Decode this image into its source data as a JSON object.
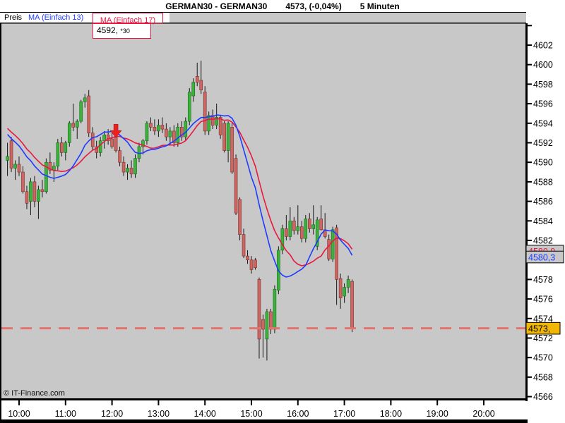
{
  "window": {
    "title_instrument": "GERMAN30 - GERMAN30",
    "title_quote": "4573, (-0,04%)",
    "title_timeframe": "5 Minuten"
  },
  "legend": {
    "pane_label": "Preis",
    "ma13_label": "MA (Einfach 13)",
    "ma17_label": "MA (Einfach 17)",
    "tooltip_value": "4592, ",
    "tooltip_note": "*30"
  },
  "footer": {
    "copyright": "© IT-Finance.com"
  },
  "colors": {
    "chart_bg": "#c8c8c8",
    "frame": "#000000",
    "up_body": "#3cb23c",
    "up_border": "#166b16",
    "down_body": "#cc6661",
    "down_border": "#7e2d2a",
    "wick": "#1a1a1a",
    "ma13": "#1e3cff",
    "ma17": "#e81840",
    "dashed_line": "#e4736e",
    "arrow": "#ec2020",
    "tag_yellow_bg": "#f2b705",
    "tag_gray_bg": "#c8c8c8"
  },
  "chart_data": {
    "type": "candlestick",
    "title": "GERMAN30 5 Minuten",
    "x_axis": {
      "labels": [
        "10:00",
        "11:00",
        "12:00",
        "13:00",
        "14:00",
        "15:00",
        "16:00",
        "17:00",
        "18:00",
        "19:00",
        "20:00"
      ]
    },
    "y_axis": {
      "min": 4566,
      "max": 4604,
      "tick_step": 2,
      "label_min": 4566,
      "label_max": 4602
    },
    "series": [
      {
        "name": "Preis",
        "type": "ohlc",
        "candles": [
          [
            "09:45",
            4590.2,
            4592.0,
            4588.6,
            4590.6
          ],
          [
            "09:50",
            4592.2,
            4592.6,
            4589.0,
            4589.4
          ],
          [
            "09:55",
            4589.4,
            4590.2,
            4588.2,
            4589.8
          ],
          [
            "10:00",
            4589.8,
            4590.6,
            4588.6,
            4589.0
          ],
          [
            "10:05",
            4589.0,
            4589.6,
            4586.8,
            4587.0
          ],
          [
            "10:10",
            4587.0,
            4587.6,
            4585.2,
            4585.8
          ],
          [
            "10:15",
            4586.0,
            4588.4,
            4584.6,
            4588.0
          ],
          [
            "10:20",
            4588.0,
            4588.6,
            4585.4,
            4586.0
          ],
          [
            "10:25",
            4586.0,
            4587.6,
            4584.2,
            4587.2
          ],
          [
            "10:30",
            4587.2,
            4588.2,
            4586.4,
            4587.0
          ],
          [
            "10:35",
            4587.0,
            4590.4,
            4586.8,
            4590.0
          ],
          [
            "10:40",
            4590.0,
            4591.0,
            4588.8,
            4589.2
          ],
          [
            "10:45",
            4589.2,
            4590.0,
            4588.0,
            4589.6
          ],
          [
            "10:50",
            4589.6,
            4592.4,
            4589.2,
            4592.0
          ],
          [
            "10:55",
            4592.0,
            4592.6,
            4590.6,
            4591.0
          ],
          [
            "11:00",
            4591.0,
            4592.2,
            4590.2,
            4592.0
          ],
          [
            "11:05",
            4592.0,
            4594.2,
            4591.6,
            4594.0
          ],
          [
            "11:10",
            4594.0,
            4596.0,
            4593.2,
            4593.6
          ],
          [
            "11:15",
            4593.6,
            4594.4,
            4592.4,
            4594.2
          ],
          [
            "11:20",
            4594.2,
            4596.4,
            4594.0,
            4596.2
          ],
          [
            "11:25",
            4596.2,
            4597.0,
            4595.6,
            4596.6
          ],
          [
            "11:30",
            4596.8,
            4597.4,
            4592.6,
            4593.0
          ],
          [
            "11:35",
            4593.0,
            4593.6,
            4591.2,
            4591.6
          ],
          [
            "11:40",
            4591.6,
            4592.2,
            4590.4,
            4591.0
          ],
          [
            "11:45",
            4591.0,
            4592.6,
            4590.6,
            4592.2
          ],
          [
            "11:50",
            4592.2,
            4593.2,
            4591.4,
            4592.8
          ],
          [
            "11:55",
            4592.8,
            4593.4,
            4591.8,
            4592.2
          ],
          [
            "12:00",
            4592.4,
            4593.0,
            4591.4,
            4591.6
          ],
          [
            "12:05",
            4592.6,
            4593.2,
            4591.0,
            4591.2
          ],
          [
            "12:10",
            4591.2,
            4591.6,
            4589.6,
            4590.0
          ],
          [
            "12:15",
            4590.0,
            4590.6,
            4588.6,
            4589.0
          ],
          [
            "12:20",
            4589.0,
            4589.8,
            4588.2,
            4589.4
          ],
          [
            "12:25",
            4589.4,
            4590.2,
            4588.4,
            4588.8
          ],
          [
            "12:30",
            4588.8,
            4590.8,
            4588.4,
            4590.4
          ],
          [
            "12:35",
            4590.4,
            4592.0,
            4590.0,
            4591.6
          ],
          [
            "12:40",
            4591.6,
            4592.4,
            4590.8,
            4592.2
          ],
          [
            "12:45",
            4592.2,
            4594.2,
            4591.8,
            4594.0
          ],
          [
            "12:50",
            4594.0,
            4594.6,
            4593.2,
            4593.6
          ],
          [
            "12:55",
            4593.6,
            4594.4,
            4592.8,
            4593.2
          ],
          [
            "13:00",
            4593.2,
            4594.4,
            4592.6,
            4593.8
          ],
          [
            "13:05",
            4593.8,
            4594.6,
            4593.0,
            4593.4
          ],
          [
            "13:10",
            4593.4,
            4594.0,
            4592.2,
            4592.6
          ],
          [
            "13:15",
            4592.6,
            4593.6,
            4591.8,
            4593.2
          ],
          [
            "13:20",
            4593.2,
            4593.8,
            4591.6,
            4592.0
          ],
          [
            "13:25",
            4592.0,
            4594.0,
            4591.6,
            4593.6
          ],
          [
            "13:30",
            4593.6,
            4594.2,
            4592.2,
            4592.6
          ],
          [
            "13:35",
            4592.6,
            4594.6,
            4592.2,
            4594.2
          ],
          [
            "13:40",
            4594.2,
            4597.6,
            4593.8,
            4597.2
          ],
          [
            "13:45",
            4596.8,
            4598.6,
            4596.2,
            4598.2
          ],
          [
            "13:50",
            4598.8,
            4600.2,
            4597.8,
            4598.2
          ],
          [
            "13:55",
            4598.4,
            4600.4,
            4597.0,
            4597.4
          ],
          [
            "14:00",
            4597.2,
            4597.8,
            4592.8,
            4593.2
          ],
          [
            "14:05",
            4593.2,
            4595.2,
            4592.8,
            4594.8
          ],
          [
            "14:10",
            4594.8,
            4595.4,
            4593.4,
            4593.8
          ],
          [
            "14:15",
            4593.8,
            4596.0,
            4593.4,
            4594.6
          ],
          [
            "14:20",
            4594.6,
            4594.8,
            4592.4,
            4592.8
          ],
          [
            "14:25",
            4594.0,
            4594.2,
            4591.0,
            4591.2
          ],
          [
            "14:30",
            4591.2,
            4594.2,
            4590.0,
            4594.0
          ],
          [
            "14:35",
            4593.6,
            4594.0,
            4588.8,
            4589.0
          ],
          [
            "14:40",
            4590.4,
            4590.8,
            4584.6,
            4584.8
          ],
          [
            "14:45",
            4586.2,
            4586.4,
            4582.0,
            4582.6
          ],
          [
            "14:50",
            4582.6,
            4583.2,
            4580.2,
            4580.4
          ],
          [
            "14:55",
            4580.4,
            4581.0,
            4579.6,
            4580.0
          ],
          [
            "15:00",
            4580.0,
            4580.4,
            4578.6,
            4579.0
          ],
          [
            "15:05",
            4580.0,
            4580.2,
            4579.0,
            4579.2
          ],
          [
            "15:10",
            4578.0,
            4578.2,
            4569.9,
            4571.9
          ],
          [
            "15:15",
            4573.9,
            4574.4,
            4570.0,
            4572.9
          ],
          [
            "15:20",
            4571.9,
            4575.0,
            4569.7,
            4574.7
          ],
          [
            "15:25",
            4574.7,
            4575.0,
            4572.4,
            4572.9
          ],
          [
            "15:30",
            4572.9,
            4577.4,
            4572.5,
            4577.0
          ],
          [
            "15:35",
            4576.9,
            4581.4,
            4576.5,
            4581.0
          ],
          [
            "15:40",
            4581.0,
            4583.6,
            4580.6,
            4583.2
          ],
          [
            "15:45",
            4583.2,
            4584.6,
            4582.0,
            4582.4
          ],
          [
            "15:50",
            4582.4,
            4585.4,
            4582.0,
            4584.0
          ],
          [
            "15:55",
            4584.0,
            4584.4,
            4582.6,
            4583.0
          ],
          [
            "16:00",
            4583.0,
            4585.6,
            4582.6,
            4583.4
          ],
          [
            "16:05",
            4583.4,
            4584.0,
            4581.8,
            4582.2
          ],
          [
            "16:10",
            4582.2,
            4584.6,
            4581.8,
            4584.2
          ],
          [
            "16:15",
            4584.2,
            4584.8,
            4582.8,
            4583.2
          ],
          [
            "16:20",
            4583.2,
            4585.6,
            4582.6,
            4583.6
          ],
          [
            "16:25",
            4581.4,
            4584.4,
            4581.0,
            4584.1
          ],
          [
            "16:30",
            4584.2,
            4585.6,
            4583.0,
            4583.1
          ],
          [
            "16:35",
            4583.1,
            4584.8,
            4582.2,
            4582.4
          ],
          [
            "16:40",
            4582.1,
            4582.6,
            4579.9,
            4580.1
          ],
          [
            "16:45",
            4580.1,
            4583.4,
            4579.8,
            4583.1
          ],
          [
            "16:50",
            4583.3,
            4583.6,
            4575.4,
            4578.0
          ],
          [
            "16:55",
            4578.1,
            4578.6,
            4575.0,
            4576.1
          ],
          [
            "17:00",
            4576.3,
            4577.6,
            4575.6,
            4577.2
          ],
          [
            "17:05",
            4577.2,
            4578.4,
            4576.6,
            4578.0
          ],
          [
            "17:10",
            4577.8,
            4578.0,
            4572.6,
            4573.0
          ]
        ]
      },
      {
        "name": "MA (Einfach 13)",
        "type": "sma",
        "period": 13,
        "color_key": "ma13",
        "last_value": 4580.3
      },
      {
        "name": "MA (Einfach 17)",
        "type": "sma",
        "period": 17,
        "color_key": "ma17",
        "last_value": 4580.9
      }
    ],
    "warmup_closes": [
      4596.0,
      4595.5,
      4595.5,
      4595.0,
      4595.0,
      4594.5,
      4594.0,
      4594.0,
      4593.5,
      4593.0,
      4593.0,
      4592.5,
      4592.5,
      4592.0,
      4591.5,
      4591.0
    ],
    "annotations": {
      "dashed_line_value": 4573,
      "arrow": {
        "time": "12:05",
        "value": 4593.9
      },
      "price_tags": [
        {
          "text": "4580,9",
          "value": 4580.9,
          "text_color_key": "ma17",
          "bg_key": "tag_gray_bg"
        },
        {
          "text": "4580,3",
          "value": 4580.3,
          "text_color_key": "ma13",
          "bg_key": "tag_gray_bg"
        },
        {
          "text": "4573,",
          "value": 4573.0,
          "text_color_key": "frame",
          "bg_key": "tag_yellow_bg"
        }
      ]
    }
  }
}
